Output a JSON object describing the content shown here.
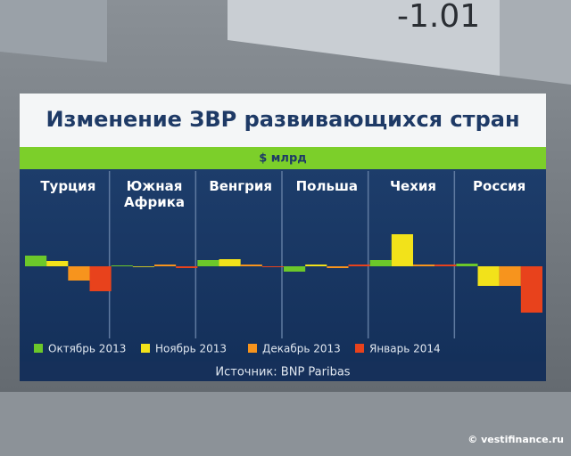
{
  "screen_text": "-1.01",
  "watermark": "© vestifinance.ru",
  "chart_data": {
    "type": "bar",
    "title": "Изменение ЗВР развивающихся стран",
    "subtitle": "$ млрд",
    "source": "Источник: BNP Paribas",
    "categories": [
      "Турция",
      "Южная Африка",
      "Венгрия",
      "Польша",
      "Чехия",
      "Россия"
    ],
    "series": [
      {
        "name": "Октябрь 2013",
        "color": "#6cc82a",
        "values": [
          6,
          0.5,
          3.5,
          -3,
          3.5,
          1.5
        ]
      },
      {
        "name": "Ноябрь 2013",
        "color": "#f2e21a",
        "values": [
          3,
          0,
          4,
          1,
          18,
          -11
        ]
      },
      {
        "name": "Декабрь 2013",
        "color": "#f7941d",
        "values": [
          -8,
          1,
          1,
          -1,
          1,
          -11
        ]
      },
      {
        "name": "Январь 2014",
        "color": "#e8421c",
        "values": [
          -14,
          -1,
          -0.5,
          1,
          1,
          -26
        ]
      }
    ]
  }
}
